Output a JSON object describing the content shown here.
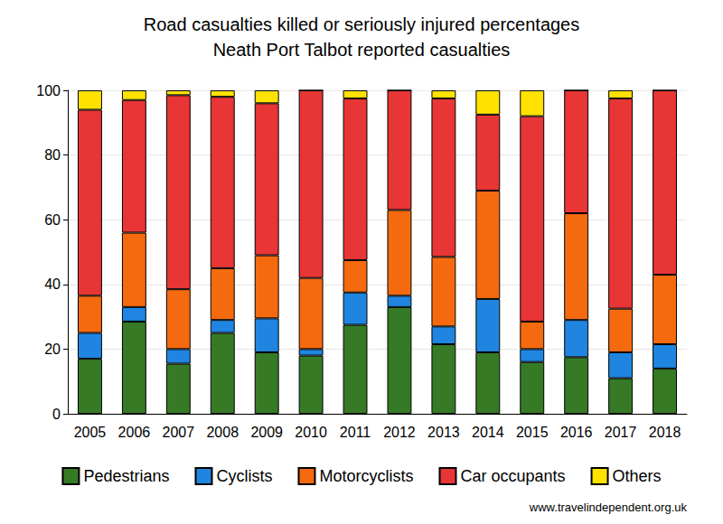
{
  "chart_data": {
    "type": "bar",
    "title": "Road casualties killed or seriously injured percentages",
    "subtitle": "Neath Port Talbot reported casualties",
    "annotations": [
      "www.travelindependent.org.uk"
    ],
    "categories": [
      "2005",
      "2006",
      "2007",
      "2008",
      "2009",
      "2010",
      "2011",
      "2012",
      "2013",
      "2014",
      "2015",
      "2016",
      "2017",
      "2018"
    ],
    "series": [
      {
        "name": "Pedestrians",
        "color": "#367a26",
        "values": [
          17,
          28.5,
          15.5,
          25,
          19,
          18,
          27.5,
          33,
          21.5,
          19,
          16,
          17.5,
          11,
          14
        ]
      },
      {
        "name": "Cyclists",
        "color": "#1f85e0",
        "values": [
          8,
          4.5,
          4.5,
          4,
          10.5,
          2,
          10,
          3.5,
          5.5,
          16.5,
          4,
          11.5,
          8,
          7.5
        ]
      },
      {
        "name": "Motorcyclists",
        "color": "#f56a0e",
        "values": [
          11.5,
          23,
          18.5,
          16,
          19.5,
          22,
          10,
          26.5,
          21.5,
          33.5,
          8.5,
          33,
          13.5,
          21.5
        ]
      },
      {
        "name": "Car occupants",
        "color": "#e83535",
        "values": [
          57.5,
          41,
          60,
          53,
          47,
          58,
          50,
          37,
          49,
          23.5,
          63.5,
          38,
          65,
          57
        ]
      },
      {
        "name": "Others",
        "color": "#ffe200",
        "values": [
          6,
          3,
          1.5,
          2,
          4,
          0,
          2.5,
          0,
          2.5,
          7.5,
          8,
          0,
          2.5,
          0
        ]
      }
    ],
    "ylim": [
      0,
      100
    ],
    "yticks": [
      0,
      20,
      40,
      60,
      80,
      100
    ],
    "grid": true,
    "stacked": true,
    "legend": "bottom"
  }
}
